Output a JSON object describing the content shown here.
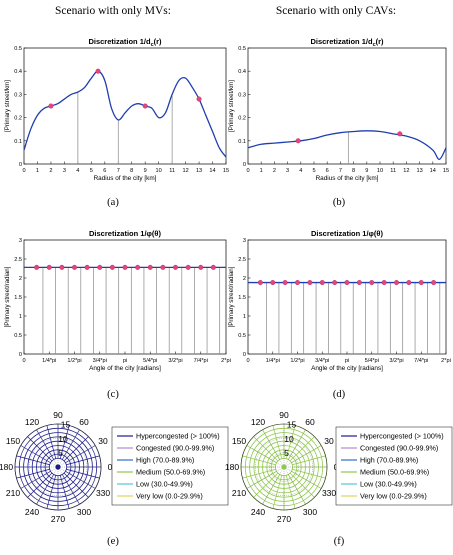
{
  "column_titles": {
    "left": "Scenario with only MVs:",
    "right": "Scenario with only CAVs:"
  },
  "panel_letters": [
    "(a)",
    "(b)",
    "(c)",
    "(d)",
    "(e)",
    "(f)"
  ],
  "colors": {
    "curve": "#1f3fb0",
    "marker": "#e4457a",
    "stem": "#888888",
    "hyper": "#1a1a8c",
    "congested": "#b08bd0",
    "high": "#2a6fd6",
    "medium": "#8fc84a",
    "low": "#55c3d9",
    "verylow": "#e0d05a"
  },
  "chart_data": [
    {
      "id": "a",
      "type": "line",
      "title_prefix": "Discretization 1/d",
      "title_sub": "c",
      "title_suffix": "(r)",
      "xlabel": "Radius of the city [km]",
      "ylabel": "[Primary street/km]",
      "xlim": [
        0,
        15
      ],
      "ylim": [
        0,
        0.5
      ],
      "xticks": [
        0,
        1,
        2,
        3,
        4,
        5,
        6,
        7,
        8,
        9,
        10,
        11,
        12,
        13,
        14,
        15
      ],
      "yticks": [
        0,
        0.1,
        0.2,
        0.3,
        0.4,
        0.5
      ],
      "ytick_labels": [
        "0",
        "0.1",
        "0.2",
        "0.3",
        "0.4",
        "0.5"
      ],
      "curve_x": [
        0,
        0.5,
        1,
        1.5,
        2,
        2.5,
        3,
        3.5,
        4,
        4.5,
        5,
        5.5,
        6,
        6.5,
        7,
        7.5,
        8,
        8.5,
        9,
        9.5,
        10,
        10.5,
        11,
        11.5,
        12,
        12.5,
        13,
        13.5,
        14,
        14.5,
        15
      ],
      "curve_y": [
        0.06,
        0.15,
        0.21,
        0.24,
        0.25,
        0.26,
        0.28,
        0.3,
        0.31,
        0.33,
        0.37,
        0.4,
        0.36,
        0.24,
        0.19,
        0.22,
        0.25,
        0.26,
        0.25,
        0.24,
        0.2,
        0.22,
        0.3,
        0.36,
        0.37,
        0.33,
        0.28,
        0.21,
        0.14,
        0.07,
        0.03
      ],
      "markers": [
        {
          "x": 2,
          "y": 0.25
        },
        {
          "x": 5.5,
          "y": 0.4
        },
        {
          "x": 9,
          "y": 0.25
        },
        {
          "x": 13,
          "y": 0.28
        }
      ],
      "stems": [
        {
          "x": 4,
          "y": 0.31
        },
        {
          "x": 7,
          "y": 0.19
        },
        {
          "x": 11,
          "y": 0.3
        }
      ]
    },
    {
      "id": "b",
      "type": "line",
      "title_prefix": "Discretization 1/d",
      "title_sub": "c",
      "title_suffix": "(r)",
      "xlabel": "Radius of the city [km]",
      "ylabel": "[Primary street/km]",
      "xlim": [
        0,
        15
      ],
      "ylim": [
        0,
        0.5
      ],
      "xticks": [
        0,
        1,
        2,
        3,
        4,
        5,
        6,
        7,
        8,
        9,
        10,
        11,
        12,
        13,
        14,
        15
      ],
      "yticks": [
        0,
        0.1,
        0.2,
        0.3,
        0.4,
        0.5
      ],
      "ytick_labels": [
        "0",
        "0.1",
        "0.2",
        "0.3",
        "0.4",
        "0.5"
      ],
      "curve_x": [
        0,
        1,
        2,
        3,
        4,
        5,
        6,
        7,
        8,
        9,
        10,
        11,
        12,
        13,
        14,
        14.5,
        15
      ],
      "curve_y": [
        0.07,
        0.085,
        0.09,
        0.095,
        0.1,
        0.11,
        0.125,
        0.135,
        0.14,
        0.143,
        0.14,
        0.13,
        0.12,
        0.1,
        0.06,
        0.02,
        0.07
      ],
      "markers": [
        {
          "x": 3.8,
          "y": 0.1
        },
        {
          "x": 11.5,
          "y": 0.13
        }
      ],
      "stems": [
        {
          "x": 7.6,
          "y": 0.14
        }
      ]
    },
    {
      "id": "c",
      "type": "line",
      "title_prefix": "Discretization 1/",
      "title_sub": "",
      "title_suffix": "φ(θ)",
      "xlabel": "Angle of the city [radians]",
      "ylabel": "[Primary street/radian]",
      "xlim": [
        0,
        16
      ],
      "ylim": [
        0,
        3
      ],
      "xticks": [
        0,
        2,
        4,
        6,
        8,
        10,
        12,
        14,
        16
      ],
      "xtick_labels": [
        "0",
        "1/4*pi",
        "1/2*pi",
        "3/4*pi",
        "pi",
        "5/4*pi",
        "3/2*pi",
        "7/4*pi",
        "2*pi"
      ],
      "yticks": [
        0,
        0.5,
        1,
        1.5,
        2,
        2.5,
        3
      ],
      "ytick_labels": [
        "0",
        "0.5",
        "1",
        "1.5",
        "2",
        "2.5",
        "3"
      ],
      "level": 2.28,
      "markers_x": [
        1,
        2,
        3,
        4,
        5,
        6,
        7,
        8,
        9,
        10,
        11,
        12,
        13,
        14,
        15
      ],
      "stems_x": [
        1.5,
        2.5,
        3.5,
        4.5,
        5.5,
        6.5,
        7.5,
        8.5,
        9.5,
        10.5,
        11.5,
        12.5,
        13.5,
        14.5,
        15.5
      ]
    },
    {
      "id": "d",
      "type": "line",
      "title_prefix": "Discretization 1/",
      "title_sub": "",
      "title_suffix": "φ(θ)",
      "xlabel": "Angle of the city [radians]",
      "ylabel": "[Primary street/radian]",
      "xlim": [
        0,
        16
      ],
      "ylim": [
        0,
        3
      ],
      "xticks": [
        0,
        2,
        4,
        6,
        8,
        10,
        12,
        14,
        16
      ],
      "xtick_labels": [
        "0",
        "1/4*pi",
        "1/2*pi",
        "3/4*pi",
        "pi",
        "5/4*pi",
        "3/2*pi",
        "7/4*pi",
        "2*pi"
      ],
      "yticks": [
        0,
        0.5,
        1,
        1.5,
        2,
        2.5,
        3
      ],
      "ytick_labels": [
        "0",
        "0.5",
        "1",
        "1.5",
        "2",
        "2.5",
        "3"
      ],
      "level": 1.88,
      "markers_x": [
        1,
        2,
        3,
        4,
        5,
        6,
        7,
        8,
        9,
        10,
        11,
        12,
        13,
        14,
        15
      ],
      "stems_x": [
        1.5,
        2.5,
        3.5,
        4.5,
        5.5,
        6.5,
        7.5,
        8.5,
        9.5,
        10.5,
        11.5,
        12.5,
        13.5,
        14.5,
        15.5
      ]
    },
    {
      "id": "e",
      "type": "polar",
      "radial_ticks": [
        "5",
        "10",
        "15"
      ],
      "radial_values": [
        5,
        10,
        15
      ],
      "rmax": 15,
      "angle_ticks": [
        "0",
        "30",
        "60",
        "90",
        "120",
        "150",
        "180",
        "210",
        "240",
        "270",
        "300",
        "330"
      ],
      "angle_values": [
        0,
        30,
        60,
        90,
        120,
        150,
        180,
        210,
        240,
        270,
        300,
        330
      ],
      "rings": [
        3,
        4.5,
        6,
        7.5,
        9,
        10.5,
        12,
        13.5,
        15
      ],
      "spokes": 24,
      "level_color": "hyper",
      "center_dot": true,
      "legend": [
        "Hypercongested (> 100%)",
        "Congested (90.0-99.9%)",
        "High (70.0-89.9%)",
        "Medium (50.0-69.9%)",
        "Low (30.0-49.9%)",
        "Very low (0.0-29.9%)"
      ]
    },
    {
      "id": "f",
      "type": "polar",
      "radial_ticks": [
        "5",
        "10",
        "15"
      ],
      "radial_values": [
        5,
        10,
        15
      ],
      "rmax": 15,
      "angle_ticks": [
        "0",
        "30",
        "60",
        "90",
        "120",
        "150",
        "180",
        "210",
        "240",
        "270",
        "300",
        "330"
      ],
      "angle_values": [
        0,
        30,
        60,
        90,
        120,
        150,
        180,
        210,
        240,
        270,
        300,
        330
      ],
      "rings": [
        3,
        4.5,
        6,
        7.5,
        9,
        10.5,
        12,
        13.5,
        15
      ],
      "spokes": 24,
      "level_color": "medium",
      "center_dot": true,
      "legend": [
        "Hypercongested (> 100%)",
        "Congested (90.0-99.9%)",
        "High (70.0-89.9%)",
        "Medium (50.0-69.9%)",
        "Low (30.0-49.9%)",
        "Very low (0.0-29.9%)"
      ]
    }
  ]
}
